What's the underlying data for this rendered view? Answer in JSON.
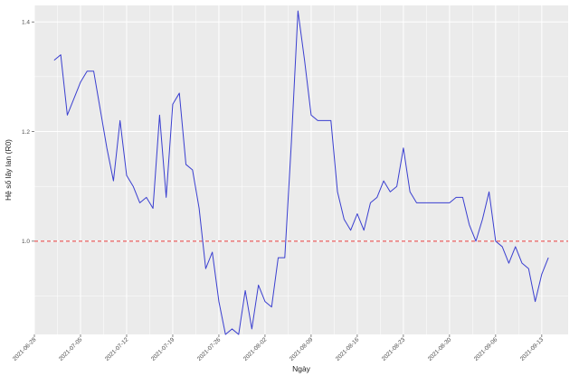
{
  "chart_data": {
    "type": "line",
    "xlabel": "Ngày",
    "ylabel": "Hệ số lây lan (R0)",
    "ylim": [
      0.83,
      1.43
    ],
    "yticks": [
      1.0,
      1.2,
      1.4
    ],
    "xlim": [
      "2021-06-28",
      "2021-09-17"
    ],
    "xticks": [
      "2021-06-28",
      "2021-07-05",
      "2021-07-12",
      "2021-07-19",
      "2021-07-26",
      "2021-08-02",
      "2021-08-09",
      "2021-08-16",
      "2021-08-23",
      "2021-08-30",
      "2021-09-06",
      "2021-09-13"
    ],
    "grid": true,
    "reference_line": {
      "y": 1.0,
      "style": "dashed",
      "color": "#e8393b"
    },
    "series": [
      {
        "color": "#3a3fd0",
        "x": [
          "2021-07-01",
          "2021-07-02",
          "2021-07-03",
          "2021-07-05",
          "2021-07-06",
          "2021-07-07",
          "2021-07-08",
          "2021-07-09",
          "2021-07-10",
          "2021-07-11",
          "2021-07-12",
          "2021-07-13",
          "2021-07-14",
          "2021-07-15",
          "2021-07-16",
          "2021-07-17",
          "2021-07-18",
          "2021-07-19",
          "2021-07-20",
          "2021-07-21",
          "2021-07-22",
          "2021-07-23",
          "2021-07-24",
          "2021-07-25",
          "2021-07-26",
          "2021-07-27",
          "2021-07-28",
          "2021-07-29",
          "2021-07-30",
          "2021-07-31",
          "2021-08-01",
          "2021-08-02",
          "2021-08-03",
          "2021-08-04",
          "2021-08-05",
          "2021-08-06",
          "2021-08-07",
          "2021-08-08",
          "2021-08-09",
          "2021-08-10",
          "2021-08-11",
          "2021-08-12",
          "2021-08-13",
          "2021-08-14",
          "2021-08-15",
          "2021-08-16",
          "2021-08-17",
          "2021-08-18",
          "2021-08-19",
          "2021-08-20",
          "2021-08-21",
          "2021-08-22",
          "2021-08-23",
          "2021-08-24",
          "2021-08-25",
          "2021-08-26",
          "2021-08-27",
          "2021-08-28",
          "2021-08-29",
          "2021-08-30",
          "2021-08-31",
          "2021-09-01",
          "2021-09-02",
          "2021-09-03",
          "2021-09-04",
          "2021-09-05",
          "2021-09-06",
          "2021-09-07",
          "2021-09-08",
          "2021-09-09",
          "2021-09-10",
          "2021-09-11",
          "2021-09-12",
          "2021-09-13",
          "2021-09-14"
        ],
        "values": [
          1.33,
          1.34,
          1.23,
          1.29,
          1.31,
          1.31,
          1.24,
          1.17,
          1.11,
          1.22,
          1.12,
          1.1,
          1.07,
          1.08,
          1.06,
          1.23,
          1.08,
          1.25,
          1.27,
          1.14,
          1.13,
          1.06,
          0.95,
          0.98,
          0.89,
          0.83,
          0.84,
          0.83,
          0.91,
          0.84,
          0.92,
          0.89,
          0.88,
          0.97,
          0.97,
          1.18,
          1.42,
          1.33,
          1.23,
          1.22,
          1.22,
          1.22,
          1.09,
          1.04,
          1.02,
          1.05,
          1.02,
          1.07,
          1.08,
          1.11,
          1.09,
          1.1,
          1.17,
          1.09,
          1.07,
          1.07,
          1.07,
          1.07,
          1.07,
          1.07,
          1.08,
          1.08,
          1.03,
          1.0,
          1.04,
          1.09,
          1.0,
          0.99,
          0.96,
          0.99,
          0.96,
          0.95,
          0.89,
          0.94,
          0.97
        ]
      }
    ]
  }
}
